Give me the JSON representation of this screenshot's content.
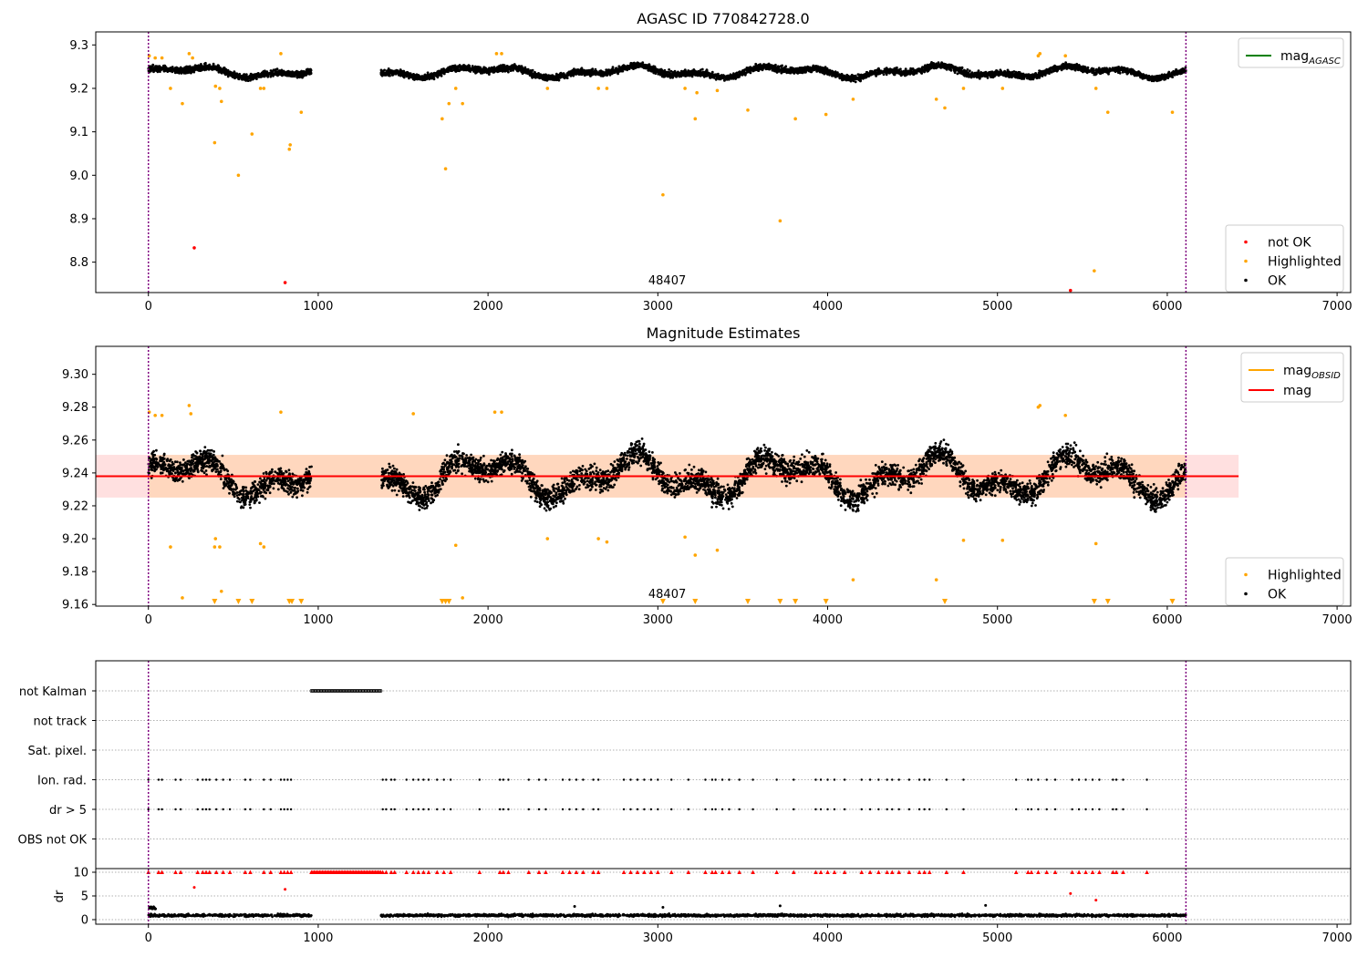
{
  "chart_data": [
    {
      "type": "scatter",
      "title": "AGASC ID 770842728.0",
      "xlim": [
        -310,
        7080
      ],
      "ylim": [
        8.73,
        9.33
      ],
      "xticks": [
        0,
        1000,
        2000,
        3000,
        4000,
        5000,
        6000,
        7000
      ],
      "yticks": [
        8.8,
        8.9,
        9.0,
        9.1,
        9.2,
        9.3
      ],
      "ytick_labels": [
        "8.8",
        "8.9",
        "9.0",
        "9.1",
        "9.2",
        "9.3"
      ],
      "obsid_boundaries": [
        0,
        6110
      ],
      "obsid_label": "48407",
      "ok_band": {
        "center": 9.238,
        "amplitude": 0.015,
        "noise": 0.02
      },
      "ok_segments": [
        [
          0,
          960
        ],
        [
          1370,
          6110
        ]
      ],
      "legend_top": [
        {
          "label": "mag",
          "sub": "AGASC",
          "color": "#008000",
          "kind": "line"
        }
      ],
      "legend_bottom": [
        {
          "label": "not OK",
          "color": "#ff0000",
          "kind": "dot"
        },
        {
          "label": "Highlighted",
          "color": "#ffa500",
          "kind": "dot"
        },
        {
          "label": "OK",
          "color": "#000000",
          "kind": "dot"
        }
      ],
      "not_ok_points": [
        [
          270,
          8.833
        ],
        [
          805,
          8.753
        ],
        [
          5430,
          8.735
        ]
      ],
      "highlighted_points": [
        [
          5,
          9.275
        ],
        [
          40,
          9.27
        ],
        [
          80,
          9.27
        ],
        [
          130,
          9.2
        ],
        [
          200,
          9.165
        ],
        [
          240,
          9.28
        ],
        [
          260,
          9.27
        ],
        [
          390,
          9.075
        ],
        [
          395,
          9.205
        ],
        [
          420,
          9.2
        ],
        [
          430,
          9.17
        ],
        [
          530,
          9.0
        ],
        [
          610,
          9.095
        ],
        [
          660,
          9.2
        ],
        [
          680,
          9.2
        ],
        [
          780,
          9.28
        ],
        [
          830,
          9.06
        ],
        [
          835,
          9.07
        ],
        [
          900,
          9.145
        ],
        [
          1730,
          9.13
        ],
        [
          1750,
          9.015
        ],
        [
          1770,
          9.165
        ],
        [
          1810,
          9.2
        ],
        [
          1850,
          9.165
        ],
        [
          2050,
          9.28
        ],
        [
          2080,
          9.28
        ],
        [
          2350,
          9.2
        ],
        [
          2650,
          9.2
        ],
        [
          2700,
          9.2
        ],
        [
          3030,
          8.955
        ],
        [
          3160,
          9.2
        ],
        [
          3220,
          9.13
        ],
        [
          3230,
          9.19
        ],
        [
          3350,
          9.195
        ],
        [
          3530,
          9.15
        ],
        [
          3720,
          8.895
        ],
        [
          3810,
          9.13
        ],
        [
          3990,
          9.14
        ],
        [
          4150,
          9.175
        ],
        [
          4640,
          9.175
        ],
        [
          4690,
          9.155
        ],
        [
          4800,
          9.2
        ],
        [
          5030,
          9.2
        ],
        [
          5240,
          9.275
        ],
        [
          5250,
          9.28
        ],
        [
          5400,
          9.275
        ],
        [
          5570,
          8.78
        ],
        [
          5580,
          9.2
        ],
        [
          5650,
          9.145
        ],
        [
          6030,
          9.145
        ]
      ]
    },
    {
      "type": "scatter",
      "title": "Magnitude Estimates",
      "xlim": [
        -310,
        7080
      ],
      "ylim": [
        9.159,
        9.317
      ],
      "xticks": [
        0,
        1000,
        2000,
        3000,
        4000,
        5000,
        6000,
        7000
      ],
      "yticks": [
        9.16,
        9.18,
        9.2,
        9.22,
        9.24,
        9.26,
        9.28,
        9.3
      ],
      "ytick_labels": [
        "9.16",
        "9.18",
        "9.20",
        "9.22",
        "9.24",
        "9.26",
        "9.28",
        "9.30"
      ],
      "obsid_boundaries": [
        0,
        6110
      ],
      "obsid_label": "48407",
      "mag_line": 9.238,
      "mag_line_range": [
        -310,
        6420
      ],
      "obsid_band": [
        9.225,
        9.251
      ],
      "ok_band": {
        "center": 9.238,
        "amplitude": 0.015,
        "noise": 0.02
      },
      "ok_segments": [
        [
          0,
          960
        ],
        [
          1370,
          6110
        ]
      ],
      "legend_top": [
        {
          "label": "mag",
          "sub": "OBSID",
          "color": "#ffa500",
          "kind": "line"
        },
        {
          "label": "mag",
          "sub": "",
          "color": "#ff0000",
          "kind": "line"
        }
      ],
      "legend_bottom": [
        {
          "label": "Highlighted",
          "color": "#ffa500",
          "kind": "dot"
        },
        {
          "label": "OK",
          "color": "#000000",
          "kind": "dot"
        }
      ],
      "highlighted_points": [
        [
          5,
          9.277
        ],
        [
          40,
          9.275
        ],
        [
          80,
          9.275
        ],
        [
          130,
          9.195
        ],
        [
          200,
          9.164
        ],
        [
          240,
          9.281
        ],
        [
          250,
          9.276
        ],
        [
          390,
          9.195
        ],
        [
          395,
          9.2
        ],
        [
          420,
          9.195
        ],
        [
          430,
          9.168
        ],
        [
          660,
          9.197
        ],
        [
          680,
          9.195
        ],
        [
          780,
          9.277
        ],
        [
          1560,
          9.276
        ],
        [
          1810,
          9.196
        ],
        [
          1850,
          9.164
        ],
        [
          2040,
          9.277
        ],
        [
          2080,
          9.277
        ],
        [
          2350,
          9.2
        ],
        [
          2650,
          9.2
        ],
        [
          2700,
          9.198
        ],
        [
          3160,
          9.201
        ],
        [
          3220,
          9.19
        ],
        [
          3350,
          9.193
        ],
        [
          4150,
          9.175
        ],
        [
          4640,
          9.175
        ],
        [
          4800,
          9.199
        ],
        [
          5030,
          9.199
        ],
        [
          5240,
          9.28
        ],
        [
          5250,
          9.281
        ],
        [
          5400,
          9.275
        ],
        [
          5580,
          9.197
        ]
      ],
      "offscale_markers": [
        390,
        530,
        610,
        830,
        845,
        900,
        1730,
        1750,
        1770,
        3030,
        3220,
        3530,
        3720,
        3810,
        3990,
        4690,
        5570,
        5650,
        6030
      ]
    },
    {
      "type": "scatter",
      "title": "",
      "xlim": [
        -310,
        7080
      ],
      "xticks": [
        0,
        1000,
        2000,
        3000,
        4000,
        5000,
        6000,
        7000
      ],
      "obsid_boundaries": [
        0,
        6110
      ],
      "flag_rows": [
        "not Kalman",
        "not track",
        "Sat. pixel.",
        "Ion. rad.",
        "dr > 5",
        "OBS not OK"
      ],
      "not_kalman_range": [
        960,
        1370
      ],
      "ion_rad_x": [
        0,
        60,
        80,
        160,
        190,
        290,
        320,
        340,
        360,
        400,
        440,
        480,
        570,
        600,
        680,
        720,
        780,
        800,
        820,
        840,
        1380,
        1400,
        1430,
        1450,
        1520,
        1560,
        1590,
        1620,
        1650,
        1700,
        1740,
        1780,
        1950,
        2070,
        2090,
        2120,
        2240,
        2300,
        2340,
        2440,
        2480,
        2520,
        2560,
        2620,
        2650,
        2800,
        2840,
        2880,
        2920,
        2960,
        3000,
        3080,
        3180,
        3280,
        3320,
        3340,
        3380,
        3420,
        3480,
        3560,
        3700,
        3800,
        3930,
        3960,
        4000,
        4040,
        4100,
        4200,
        4250,
        4300,
        4350,
        4380,
        4420,
        4480,
        4540,
        4570,
        4600,
        4700,
        4800,
        5110,
        5180,
        5200,
        5240,
        5290,
        5340,
        5440,
        5480,
        5520,
        5560,
        5600,
        5680,
        5700,
        5740,
        5880
      ],
      "dr_axis": {
        "ylim": [
          0,
          10
        ],
        "yticks": [
          0,
          5,
          10
        ],
        "ylabel": "dr",
        "ok_segments": [
          [
            0,
            960
          ],
          [
            1370,
            6110
          ]
        ],
        "red_capped_x": [
          0,
          60,
          80,
          160,
          190,
          290,
          320,
          340,
          360,
          400,
          440,
          480,
          570,
          600,
          680,
          720,
          780,
          800,
          820,
          840,
          1380,
          1400,
          1430,
          1450,
          1520,
          1560,
          1590,
          1620,
          1650,
          1700,
          1740,
          1780,
          1950,
          2070,
          2090,
          2120,
          2240,
          2300,
          2340,
          2440,
          2480,
          2520,
          2560,
          2620,
          2650,
          2800,
          2840,
          2880,
          2920,
          2960,
          3000,
          3080,
          3180,
          3280,
          3320,
          3340,
          3380,
          3420,
          3480,
          3560,
          3700,
          3800,
          3930,
          3960,
          4000,
          4040,
          4100,
          4200,
          4250,
          4300,
          4350,
          4380,
          4420,
          4480,
          4540,
          4570,
          4600,
          4700,
          4800,
          5110,
          5180,
          5200,
          5240,
          5290,
          5340,
          5440,
          5480,
          5520,
          5560,
          5600,
          5680,
          5700,
          5740,
          5880
        ],
        "red_points": [
          [
            270,
            6.8
          ],
          [
            805,
            6.4
          ],
          [
            5430,
            5.5
          ],
          [
            5580,
            4.1
          ]
        ],
        "black_outliers": [
          [
            2510,
            2.8
          ],
          [
            3030,
            2.6
          ],
          [
            3720,
            2.9
          ],
          [
            4930,
            3.0
          ]
        ]
      }
    }
  ]
}
